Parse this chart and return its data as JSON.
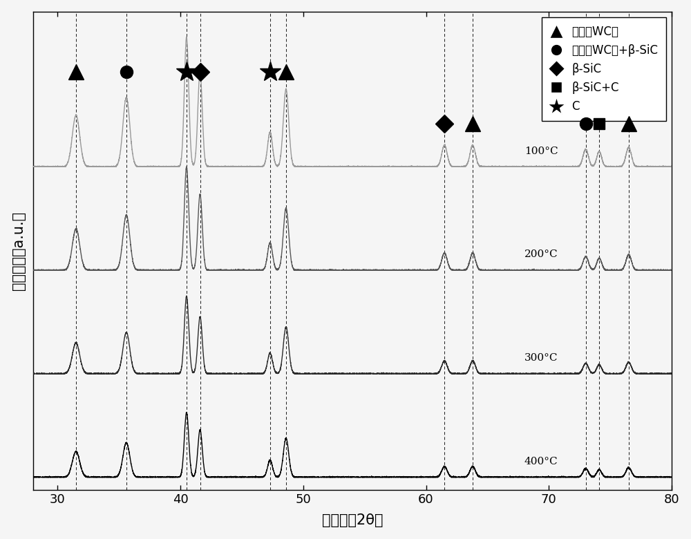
{
  "xlim": [
    28,
    80
  ],
  "xlabel": "衰射角（2θ）",
  "ylabel": "相对强度（a.u.）",
  "background_color": "#f5f5f5",
  "temperatures": [
    "100°C",
    "200°C",
    "300°C",
    "400°C"
  ],
  "dashed_lines": [
    31.5,
    35.6,
    40.5,
    41.6,
    47.3,
    48.6,
    61.5,
    63.8,
    73.0,
    74.1,
    76.5
  ],
  "legend_labels": [
    "基底（WC）",
    "基底（WC）+β-SiC",
    "β-SiC",
    "β-SiC+C",
    "C"
  ],
  "legend_markers": [
    "^",
    "o",
    "D",
    "s",
    "*"
  ]
}
